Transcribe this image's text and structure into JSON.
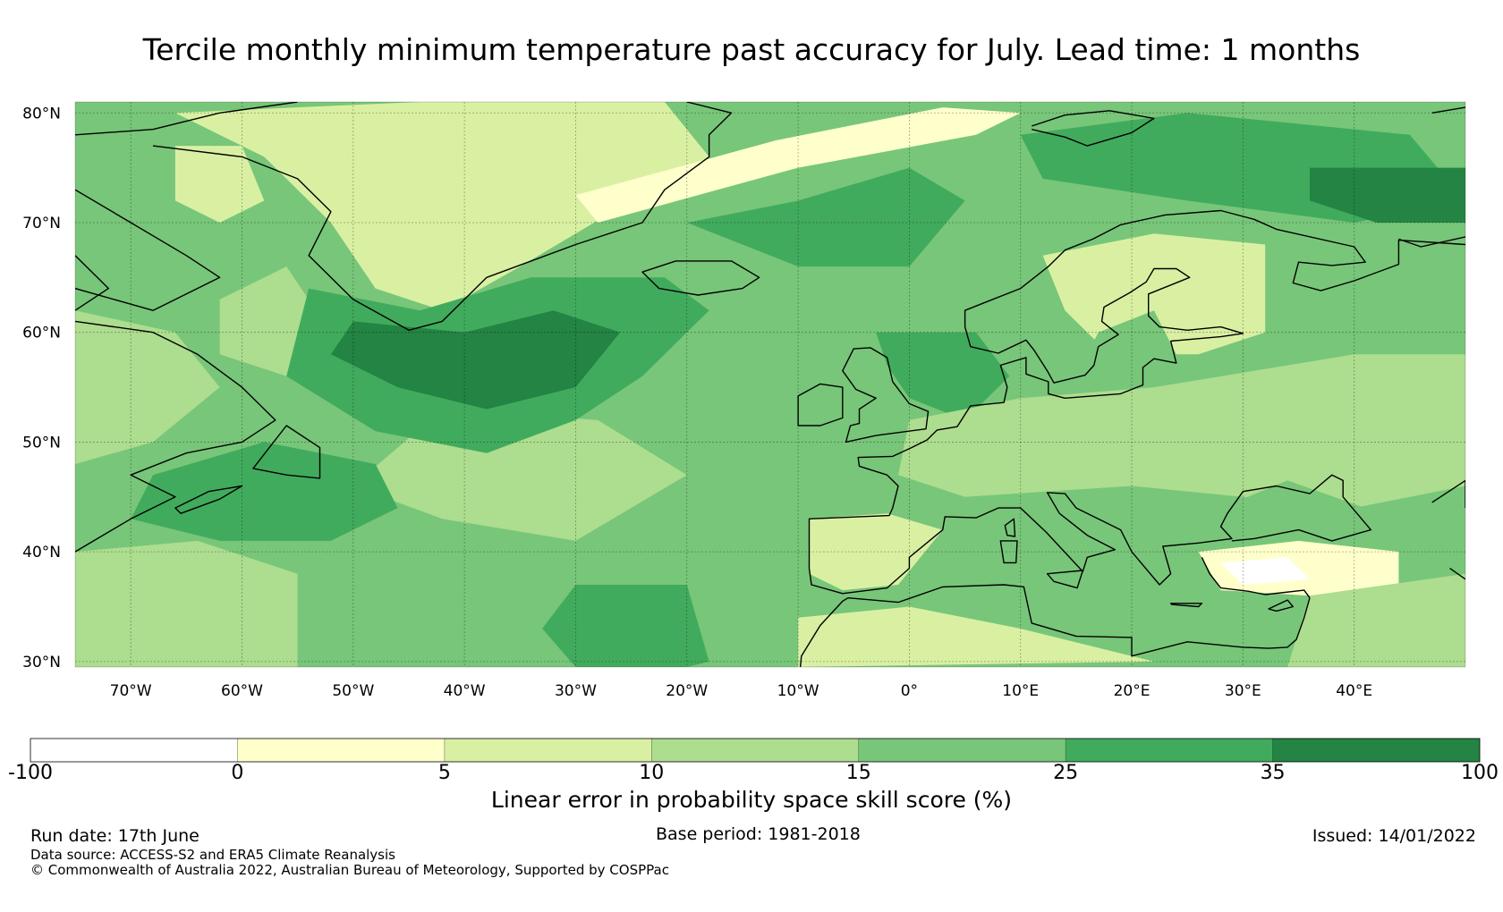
{
  "title": "Tercile monthly minimum temperature past accuracy for July. Lead time: 1 months",
  "map": {
    "lat_labels": [
      "80°N",
      "70°N",
      "60°N",
      "50°N",
      "40°N",
      "30°N"
    ],
    "lat_values": [
      80,
      70,
      60,
      50,
      40,
      30
    ],
    "lon_labels": [
      "70°W",
      "60°W",
      "50°W",
      "40°W",
      "30°W",
      "20°W",
      "10°W",
      "0°",
      "10°E",
      "20°E",
      "30°E",
      "40°E"
    ],
    "lon_values": [
      -70,
      -60,
      -50,
      -40,
      -30,
      -20,
      -10,
      0,
      10,
      20,
      30,
      40
    ],
    "lon_range": [
      -75,
      50
    ],
    "lat_range": [
      29.5,
      81
    ],
    "grid": true,
    "colors": {
      "over_35": "#238443",
      "25_35": "#41ab5d",
      "15_25": "#78c679",
      "10_15": "#addd8e",
      "5_10": "#d9f0a3",
      "0_5": "#ffffcc",
      "below_0": "#ffffff"
    }
  },
  "colorbar": {
    "boundaries": [
      "-100",
      "0",
      "5",
      "10",
      "15",
      "25",
      "35",
      "100"
    ],
    "colors": [
      "#ffffff",
      "#ffffcc",
      "#d9f0a3",
      "#addd8e",
      "#78c679",
      "#41ab5d",
      "#238443"
    ],
    "label": "Linear error in probability space skill score (%)"
  },
  "footer": {
    "run_date": "Run date: 17th June",
    "base_period": "Base period: 1981-2018",
    "issued": "Issued: 14/01/2022",
    "data_source": "Data source: ACCESS-S2 and ERA5 Climate Reanalysis",
    "copyright": "© Commonwealth of Australia 2022, Australian Bureau of Meteorology, Supported by COSPPac"
  }
}
